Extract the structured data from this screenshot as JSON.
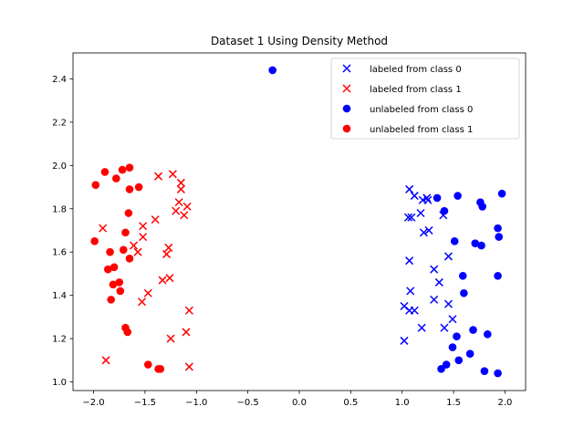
{
  "chart_data": {
    "type": "scatter",
    "title": "Dataset 1 Using Density Method",
    "xlabel": "",
    "ylabel": "",
    "xlim": [
      -2.2,
      2.2
    ],
    "ylim": [
      0.96,
      2.52
    ],
    "x_ticks": [
      -2.0,
      -1.5,
      -1.0,
      -0.5,
      0.0,
      0.5,
      1.0,
      1.5,
      2.0
    ],
    "x_tick_labels": [
      "−2.0",
      "−1.5",
      "−1.0",
      "−0.5",
      "0.0",
      "0.5",
      "1.0",
      "1.5",
      "2.0"
    ],
    "y_ticks": [
      1.0,
      1.2,
      1.4,
      1.6,
      1.8,
      2.0,
      2.2,
      2.4
    ],
    "y_tick_labels": [
      "1.0",
      "1.2",
      "1.4",
      "1.6",
      "1.8",
      "2.0",
      "2.2",
      "2.4"
    ],
    "grid": false,
    "legend_position": "top-right",
    "series": [
      {
        "name": "labeled from class 0",
        "marker": "x",
        "color": "#0000ff",
        "points": [
          [
            1.07,
            1.89
          ],
          [
            1.12,
            1.86
          ],
          [
            1.2,
            1.84
          ],
          [
            1.24,
            1.85
          ],
          [
            1.25,
            1.84
          ],
          [
            1.18,
            1.78
          ],
          [
            1.4,
            1.77
          ],
          [
            1.06,
            1.76
          ],
          [
            1.09,
            1.76
          ],
          [
            1.26,
            1.7
          ],
          [
            1.21,
            1.69
          ],
          [
            1.45,
            1.58
          ],
          [
            1.07,
            1.56
          ],
          [
            1.31,
            1.52
          ],
          [
            1.36,
            1.46
          ],
          [
            1.08,
            1.42
          ],
          [
            1.02,
            1.35
          ],
          [
            1.07,
            1.33
          ],
          [
            1.12,
            1.33
          ],
          [
            1.31,
            1.38
          ],
          [
            1.45,
            1.36
          ],
          [
            1.49,
            1.29
          ],
          [
            1.19,
            1.25
          ],
          [
            1.41,
            1.25
          ],
          [
            1.02,
            1.19
          ]
        ]
      },
      {
        "name": "labeled from class 1",
        "marker": "x",
        "color": "#ff0000",
        "points": [
          [
            -1.23,
            1.96
          ],
          [
            -1.37,
            1.95
          ],
          [
            -1.15,
            1.92
          ],
          [
            -1.15,
            1.89
          ],
          [
            -1.17,
            1.83
          ],
          [
            -1.09,
            1.81
          ],
          [
            -1.2,
            1.79
          ],
          [
            -1.12,
            1.77
          ],
          [
            -1.4,
            1.75
          ],
          [
            -1.52,
            1.72
          ],
          [
            -1.91,
            1.71
          ],
          [
            -1.52,
            1.67
          ],
          [
            -1.61,
            1.63
          ],
          [
            -1.27,
            1.62
          ],
          [
            -1.57,
            1.6
          ],
          [
            -1.29,
            1.59
          ],
          [
            -1.26,
            1.48
          ],
          [
            -1.33,
            1.47
          ],
          [
            -1.47,
            1.41
          ],
          [
            -1.53,
            1.37
          ],
          [
            -1.07,
            1.33
          ],
          [
            -1.1,
            1.23
          ],
          [
            -1.25,
            1.2
          ],
          [
            -1.88,
            1.1
          ],
          [
            -1.07,
            1.07
          ]
        ]
      },
      {
        "name": "unlabeled from class 0",
        "marker": "o",
        "color": "#0000ff",
        "points": [
          [
            -0.26,
            2.44
          ],
          [
            1.97,
            1.87
          ],
          [
            1.34,
            1.85
          ],
          [
            1.54,
            1.86
          ],
          [
            1.76,
            1.83
          ],
          [
            1.78,
            1.81
          ],
          [
            1.41,
            1.79
          ],
          [
            1.93,
            1.71
          ],
          [
            1.94,
            1.67
          ],
          [
            1.51,
            1.65
          ],
          [
            1.71,
            1.64
          ],
          [
            1.77,
            1.63
          ],
          [
            1.59,
            1.49
          ],
          [
            1.93,
            1.49
          ],
          [
            1.6,
            1.41
          ],
          [
            1.69,
            1.24
          ],
          [
            1.53,
            1.21
          ],
          [
            1.83,
            1.22
          ],
          [
            1.49,
            1.16
          ],
          [
            1.66,
            1.13
          ],
          [
            1.55,
            1.1
          ],
          [
            1.43,
            1.08
          ],
          [
            1.38,
            1.06
          ],
          [
            1.8,
            1.05
          ],
          [
            1.93,
            1.04
          ]
        ]
      },
      {
        "name": "unlabeled from class 1",
        "marker": "o",
        "color": "#ff0000",
        "points": [
          [
            -1.65,
            1.99
          ],
          [
            -1.72,
            1.98
          ],
          [
            -1.89,
            1.97
          ],
          [
            -1.78,
            1.94
          ],
          [
            -1.98,
            1.91
          ],
          [
            -1.56,
            1.9
          ],
          [
            -1.65,
            1.89
          ],
          [
            -1.66,
            1.78
          ],
          [
            -1.69,
            1.69
          ],
          [
            -1.99,
            1.65
          ],
          [
            -1.84,
            1.6
          ],
          [
            -1.71,
            1.61
          ],
          [
            -1.65,
            1.57
          ],
          [
            -1.8,
            1.53
          ],
          [
            -1.86,
            1.52
          ],
          [
            -1.75,
            1.46
          ],
          [
            -1.81,
            1.45
          ],
          [
            -1.74,
            1.42
          ],
          [
            -1.83,
            1.38
          ],
          [
            -1.69,
            1.25
          ],
          [
            -1.67,
            1.23
          ],
          [
            -1.47,
            1.08
          ],
          [
            -1.35,
            1.06
          ],
          [
            -1.37,
            1.06
          ]
        ]
      }
    ]
  }
}
